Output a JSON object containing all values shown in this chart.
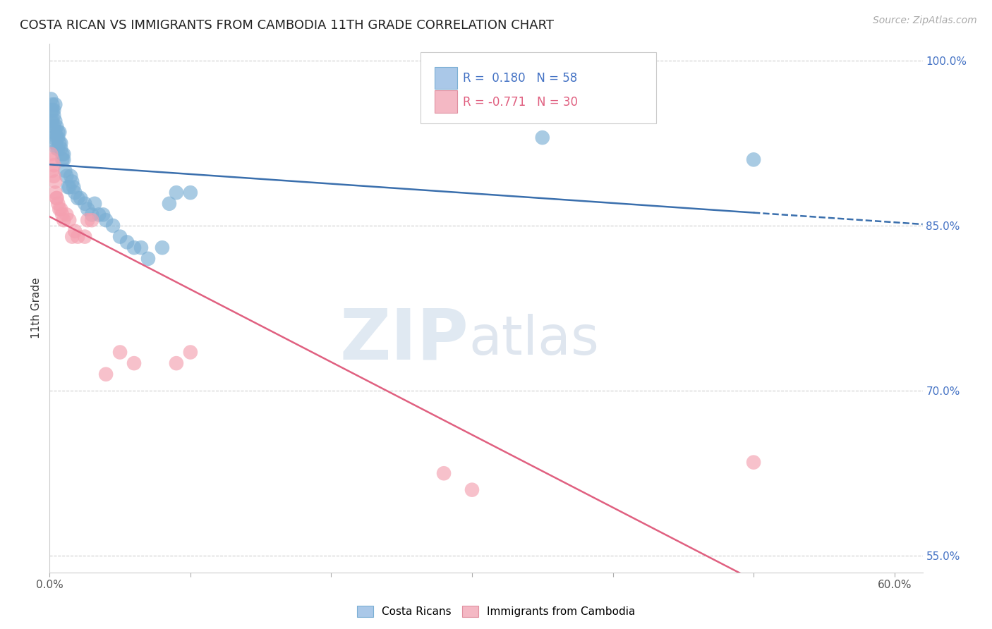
{
  "title": "COSTA RICAN VS IMMIGRANTS FROM CAMBODIA 11TH GRADE CORRELATION CHART",
  "source": "Source: ZipAtlas.com",
  "ylabel": "11th Grade",
  "blue_R": 0.18,
  "blue_N": 58,
  "pink_R": -0.771,
  "pink_N": 30,
  "blue_color": "#7bafd4",
  "pink_color": "#f4a0b0",
  "blue_line_color": "#3a6fad",
  "pink_line_color": "#e06080",
  "xlim": [
    0.0,
    0.62
  ],
  "ylim": [
    0.535,
    1.015
  ],
  "xtick_vals": [
    0.0,
    0.6
  ],
  "xtick_labels": [
    "0.0%",
    "60.0%"
  ],
  "ytick_vals": [
    0.55,
    0.7,
    0.85,
    1.0
  ],
  "ytick_labels": [
    "55.0%",
    "70.0%",
    "85.0%",
    "100.0%"
  ],
  "watermark_zip": "ZIP",
  "watermark_atlas": "atlas",
  "background_color": "#ffffff",
  "blue_x": [
    0.001,
    0.001,
    0.001,
    0.002,
    0.002,
    0.002,
    0.002,
    0.003,
    0.003,
    0.003,
    0.003,
    0.004,
    0.004,
    0.004,
    0.004,
    0.005,
    0.005,
    0.005,
    0.006,
    0.006,
    0.006,
    0.007,
    0.007,
    0.008,
    0.008,
    0.009,
    0.009,
    0.01,
    0.01,
    0.011,
    0.012,
    0.013,
    0.014,
    0.015,
    0.016,
    0.017,
    0.018,
    0.02,
    0.022,
    0.025,
    0.027,
    0.03,
    0.032,
    0.035,
    0.038,
    0.04,
    0.045,
    0.05,
    0.055,
    0.06,
    0.065,
    0.07,
    0.08,
    0.085,
    0.09,
    0.1,
    0.35,
    0.5
  ],
  "blue_y": [
    0.945,
    0.955,
    0.965,
    0.935,
    0.945,
    0.955,
    0.96,
    0.93,
    0.94,
    0.95,
    0.955,
    0.925,
    0.935,
    0.945,
    0.96,
    0.92,
    0.93,
    0.94,
    0.92,
    0.93,
    0.935,
    0.925,
    0.935,
    0.92,
    0.925,
    0.91,
    0.915,
    0.91,
    0.915,
    0.9,
    0.895,
    0.885,
    0.885,
    0.895,
    0.89,
    0.885,
    0.88,
    0.875,
    0.875,
    0.87,
    0.865,
    0.86,
    0.87,
    0.86,
    0.86,
    0.855,
    0.85,
    0.84,
    0.835,
    0.83,
    0.83,
    0.82,
    0.83,
    0.87,
    0.88,
    0.88,
    0.93,
    0.91
  ],
  "pink_x": [
    0.001,
    0.002,
    0.002,
    0.003,
    0.003,
    0.004,
    0.004,
    0.005,
    0.005,
    0.006,
    0.007,
    0.008,
    0.009,
    0.01,
    0.012,
    0.014,
    0.016,
    0.018,
    0.02,
    0.025,
    0.027,
    0.03,
    0.04,
    0.05,
    0.06,
    0.09,
    0.1,
    0.28,
    0.3,
    0.5
  ],
  "pink_y": [
    0.915,
    0.91,
    0.9,
    0.905,
    0.895,
    0.89,
    0.88,
    0.875,
    0.875,
    0.87,
    0.865,
    0.865,
    0.86,
    0.855,
    0.86,
    0.855,
    0.84,
    0.845,
    0.84,
    0.84,
    0.855,
    0.855,
    0.715,
    0.735,
    0.725,
    0.725,
    0.735,
    0.625,
    0.61,
    0.635
  ],
  "blue_line_x0": 0.0,
  "blue_line_x_solid_end": 0.5,
  "blue_line_x_dashed_end": 0.62,
  "pink_line_x0": 0.0,
  "pink_line_x_end": 0.62
}
